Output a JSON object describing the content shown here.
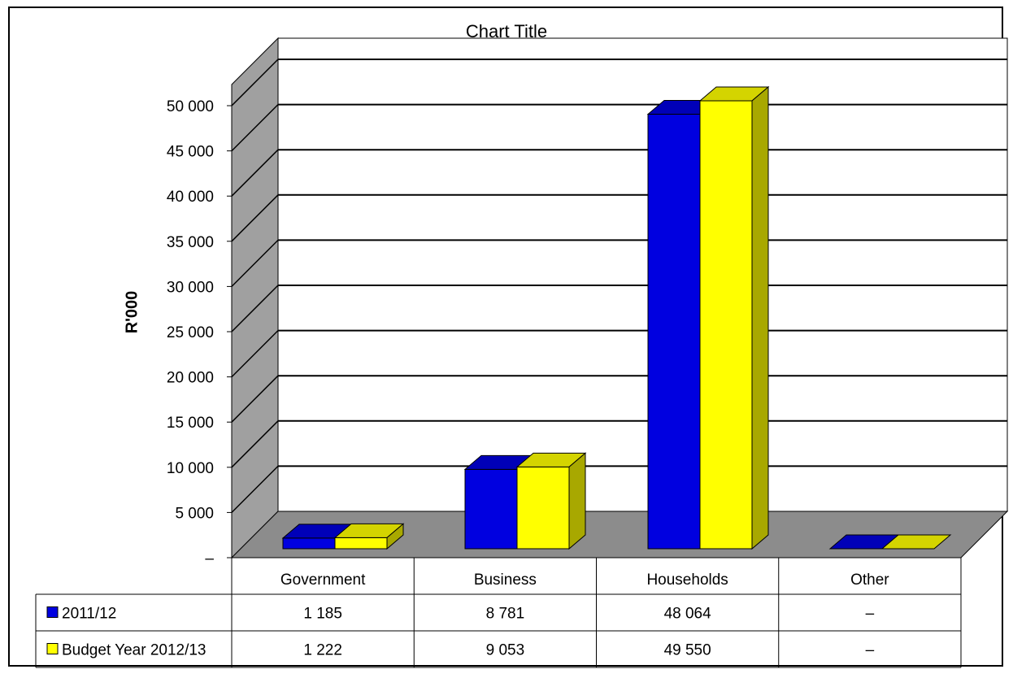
{
  "chart_data": {
    "type": "bar",
    "title": "Chart Title",
    "ylabel": "R'000",
    "xlabel": "",
    "ylim": [
      0,
      50000
    ],
    "ytick_labels": [
      "–",
      "5 000",
      "10 000",
      "15 000",
      "20 000",
      "25 000",
      "30 000",
      "35 000",
      "40 000",
      "45 000",
      "50 000"
    ],
    "categories": [
      "Government",
      "Business",
      "Households",
      "Other"
    ],
    "series": [
      {
        "name": "2011/12",
        "values": [
          1185,
          8781,
          48064,
          0
        ],
        "labels": [
          "1 185",
          "8 781",
          "48 064",
          "–"
        ],
        "color": "#0000e0",
        "side": "#00008a",
        "top": "#0000b8"
      },
      {
        "name": "Budget Year 2012/13",
        "values": [
          1222,
          9053,
          49550,
          0
        ],
        "labels": [
          "1 222",
          "9 053",
          "49 550",
          "–"
        ],
        "color": "#ffff00",
        "side": "#a8a800",
        "top": "#d4d400"
      }
    ],
    "grid": true,
    "legend": "data-table",
    "wall_color": "#a0a0a0",
    "floor_color": "#8c8c8c"
  }
}
